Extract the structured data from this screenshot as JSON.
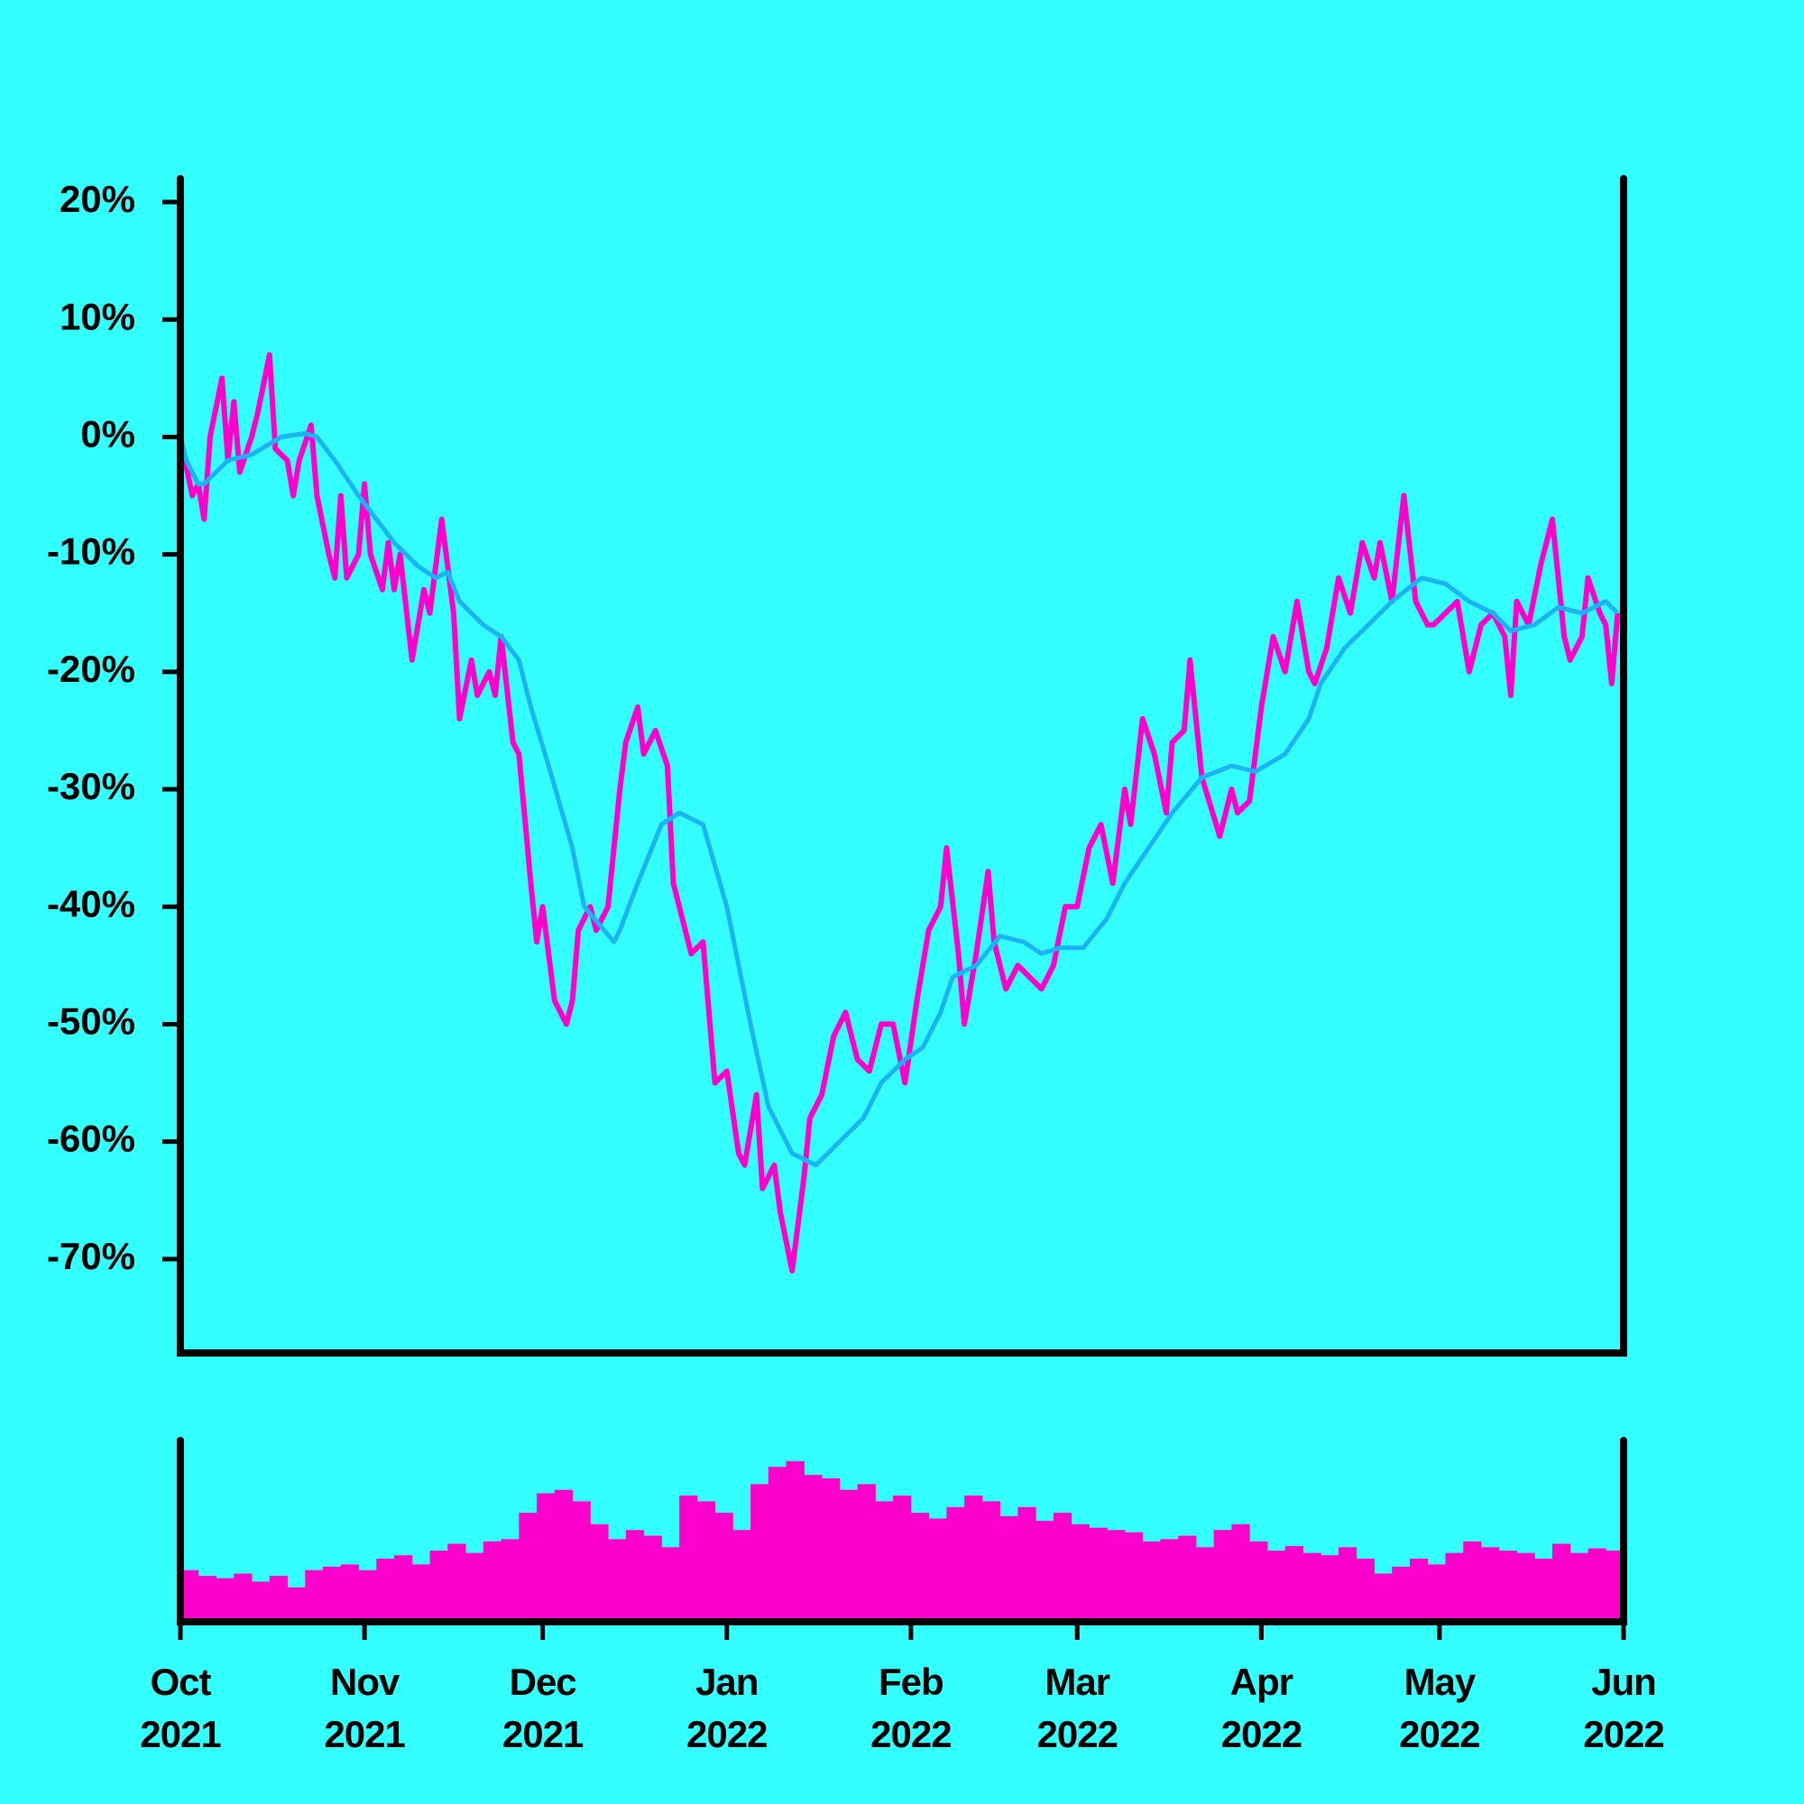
{
  "chart_data": [
    {
      "type": "line",
      "ylim": [
        -78,
        22
      ],
      "xlim": [
        0,
        243
      ],
      "yticks": [
        {
          "value": 20,
          "label": "20%"
        },
        {
          "value": 10,
          "label": "10%"
        },
        {
          "value": 0,
          "label": "0%"
        },
        {
          "value": -10,
          "label": "-10%"
        },
        {
          "value": -20,
          "label": "-20%"
        },
        {
          "value": -30,
          "label": "-30%"
        },
        {
          "value": -40,
          "label": "-40%"
        },
        {
          "value": -50,
          "label": "-50%"
        },
        {
          "value": -60,
          "label": "-60%"
        },
        {
          "value": -70,
          "label": "-70%"
        }
      ],
      "series": [
        {
          "color": "#ff00cc",
          "x": [
            0,
            2,
            3,
            4,
            5,
            7,
            8,
            9,
            10,
            12,
            13,
            15,
            16,
            18,
            19,
            20,
            22,
            23,
            25,
            26,
            27,
            28,
            30,
            31,
            32,
            34,
            35,
            36,
            37,
            39,
            41,
            42,
            44,
            46,
            47,
            49,
            50,
            52,
            53,
            54,
            56,
            57,
            59,
            60,
            61,
            63,
            65,
            66,
            67,
            69,
            70,
            72,
            74,
            75,
            77,
            78,
            80,
            82,
            83,
            84,
            86,
            88,
            90,
            92,
            94,
            95,
            97,
            98,
            100,
            101,
            103,
            105,
            106,
            108,
            110,
            112,
            114,
            116,
            118,
            120,
            122,
            124,
            126,
            128,
            129,
            131,
            132,
            134,
            136,
            137,
            139,
            141,
            143,
            145,
            147,
            149,
            151,
            153,
            155,
            157,
            159,
            160,
            162,
            164,
            166,
            167,
            169,
            170,
            172,
            175,
            177,
            178,
            180,
            182,
            184,
            186,
            188,
            190,
            191,
            193,
            195,
            197,
            199,
            201,
            202,
            204,
            206,
            208,
            210,
            211,
            213,
            215,
            217,
            219,
            221,
            223,
            224,
            225,
            227,
            229,
            231,
            233,
            234,
            236,
            237,
            239,
            240,
            241,
            242
          ],
          "values": [
            0,
            -5,
            -4,
            -7,
            0,
            5,
            -2,
            3,
            -3,
            0,
            2,
            7,
            -1,
            -2,
            -5,
            -2,
            1,
            -5,
            -10,
            -12,
            -5,
            -12,
            -10,
            -4,
            -10,
            -13,
            -9,
            -13,
            -10,
            -19,
            -13,
            -15,
            -7,
            -15,
            -24,
            -19,
            -22,
            -20,
            -22,
            -17,
            -26,
            -27,
            -38,
            -43,
            -40,
            -48,
            -50,
            -48,
            -42,
            -40,
            -42,
            -40,
            -30,
            -26,
            -23,
            -27,
            -25,
            -28,
            -38,
            -40,
            -44,
            -43,
            -55,
            -54,
            -61,
            -62,
            -56,
            -64,
            -62,
            -66,
            -71,
            -63,
            -58,
            -56,
            -51,
            -49,
            -53,
            -54,
            -50,
            -50,
            -55,
            -48,
            -42,
            -40,
            -35,
            -44,
            -50,
            -44,
            -37,
            -43,
            -47,
            -45,
            -46,
            -47,
            -45,
            -40,
            -40,
            -35,
            -33,
            -38,
            -30,
            -33,
            -24,
            -27,
            -32,
            -26,
            -25,
            -19,
            -29,
            -34,
            -30,
            -32,
            -31,
            -23,
            -17,
            -20,
            -14,
            -20,
            -21,
            -18,
            -12,
            -15,
            -9,
            -12,
            -9,
            -14,
            -5,
            -14,
            -16,
            -16,
            -15,
            -14,
            -20,
            -16,
            -15,
            -17,
            -22,
            -14,
            -16,
            -11,
            -7,
            -17,
            -19,
            -17,
            -12,
            -15,
            -16,
            -21,
            -15
          ]
        },
        {
          "color": "#1ab4f5",
          "x": [
            0,
            1,
            3,
            4,
            8,
            12,
            17,
            21,
            23,
            26,
            30,
            33,
            36,
            40,
            43,
            45,
            47,
            51,
            54,
            57,
            59,
            62,
            66,
            68,
            73,
            74,
            77,
            81,
            84,
            88,
            92,
            96,
            99,
            103,
            107,
            111,
            115,
            118,
            122,
            125,
            128,
            130,
            134,
            138,
            142,
            145,
            148,
            152,
            156,
            159,
            163,
            167,
            172,
            177,
            181,
            186,
            190,
            192,
            196,
            200,
            204,
            209,
            213,
            217,
            221,
            224,
            228,
            232,
            236,
            240,
            242
          ],
          "values": [
            0,
            -2,
            -4,
            -4,
            -2,
            -1.5,
            0,
            0.3,
            0,
            -2,
            -5,
            -7,
            -9,
            -11,
            -12,
            -11.5,
            -14,
            -16,
            -17,
            -19,
            -23,
            -28,
            -35,
            -40,
            -43,
            -42,
            -38,
            -33,
            -32,
            -33,
            -40,
            -50,
            -57,
            -61,
            -62,
            -60,
            -58,
            -55,
            -53,
            -52,
            -49,
            -46,
            -45,
            -42.5,
            -43,
            -44,
            -43.5,
            -43.5,
            -41,
            -38,
            -35,
            -32,
            -29,
            -28,
            -28.5,
            -27,
            -24,
            -21,
            -18,
            -16,
            -14,
            -12,
            -12.5,
            -14,
            -15,
            -16.5,
            -16,
            -14.5,
            -15,
            -14,
            -15
          ]
        }
      ]
    },
    {
      "type": "bar",
      "color": "#ff00cc",
      "ylim": [
        0,
        158
      ],
      "xlim": [
        0,
        243
      ],
      "xticks": [
        {
          "value": 0,
          "label": "Oct\n2021"
        },
        {
          "value": 31,
          "label": "Nov\n2021"
        },
        {
          "value": 61,
          "label": "Dec\n2021"
        },
        {
          "value": 92,
          "label": "Jan\n2022"
        },
        {
          "value": 123,
          "label": "Feb\n2022"
        },
        {
          "value": 151,
          "label": "Mar\n2022"
        },
        {
          "value": 182,
          "label": "Apr\n2022"
        },
        {
          "value": 212,
          "label": "May\n2022"
        },
        {
          "value": 243,
          "label": "Jun\n2022"
        }
      ],
      "x": [
        0,
        3,
        6,
        9,
        12,
        15,
        18,
        21,
        24,
        27,
        30,
        33,
        36,
        39,
        42,
        45,
        48,
        51,
        54,
        57,
        60,
        63,
        66,
        69,
        72,
        75,
        78,
        81,
        84,
        87,
        90,
        93,
        96,
        99,
        102,
        105,
        108,
        111,
        114,
        117,
        120,
        123,
        126,
        129,
        132,
        135,
        138,
        141,
        144,
        147,
        150,
        153,
        156,
        159,
        162,
        165,
        168,
        171,
        174,
        177,
        180,
        183,
        186,
        189,
        192,
        195,
        198,
        201,
        204,
        207,
        210,
        213,
        216,
        219,
        222,
        225,
        228,
        231,
        234,
        237,
        240
      ],
      "values": [
        45,
        40,
        38,
        42,
        35,
        40,
        30,
        45,
        48,
        50,
        45,
        55,
        58,
        50,
        62,
        68,
        60,
        70,
        72,
        95,
        112,
        115,
        105,
        85,
        72,
        80,
        75,
        65,
        110,
        105,
        95,
        80,
        120,
        135,
        140,
        128,
        125,
        115,
        120,
        105,
        110,
        95,
        90,
        100,
        110,
        105,
        92,
        100,
        88,
        95,
        85,
        82,
        80,
        78,
        70,
        72,
        75,
        65,
        80,
        85,
        70,
        62,
        66,
        60,
        58,
        65,
        55,
        42,
        48,
        55,
        50,
        60,
        70,
        65,
        62,
        60,
        55,
        68,
        60,
        64,
        62
      ]
    }
  ]
}
